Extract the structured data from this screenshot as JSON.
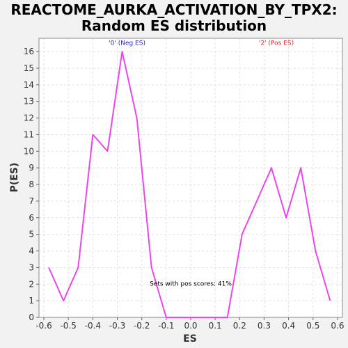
{
  "chart_data": {
    "type": "line",
    "title_lines": [
      "REACTOME_AURKA_ACTIVATION_BY_TPX2:",
      "Random ES distribution"
    ],
    "xlabel": "ES",
    "ylabel": "P(ES)",
    "xlim": [
      -0.62,
      0.62
    ],
    "ylim": [
      0,
      16.8
    ],
    "x_ticks": [
      -0.6,
      -0.5,
      -0.4,
      -0.3,
      -0.2,
      -0.1,
      0.0,
      0.1,
      0.2,
      0.3,
      0.4,
      0.5,
      0.6
    ],
    "x_tick_labels": [
      "-0.6",
      "-0.5",
      "-0.4",
      "-0.3",
      "-0.2",
      "-0.1",
      "0.0",
      "0.1",
      "0.2",
      "0.3",
      "0.4",
      "0.5",
      "0.6"
    ],
    "y_ticks": [
      0,
      1,
      2,
      3,
      4,
      5,
      6,
      7,
      8,
      9,
      10,
      11,
      12,
      13,
      14,
      15,
      16
    ],
    "grid": true,
    "series": [
      {
        "color": "#ee44ee",
        "x": [
          -0.58,
          -0.52,
          -0.46,
          -0.4,
          -0.34,
          -0.28,
          -0.22,
          -0.16,
          -0.1,
          -0.04,
          0.03,
          0.09,
          0.15,
          0.21,
          0.27,
          0.33,
          0.39,
          0.45,
          0.51,
          0.57
        ],
        "y": [
          3,
          1,
          3,
          11,
          10,
          16,
          12,
          3,
          0,
          0,
          0,
          0,
          0,
          5,
          7,
          9,
          6,
          9,
          4,
          1
        ]
      }
    ],
    "annotations": [
      {
        "text": "'0' (Neg ES)",
        "x": -0.26,
        "y": 16.4,
        "color": "#2222cc"
      },
      {
        "text": "'2' (Pos ES)",
        "x": 0.35,
        "y": 16.4,
        "color": "#dd2222"
      },
      {
        "text": "Sets with pos scores: 41%",
        "x": 0.0,
        "y": 1.9,
        "color": "#000000"
      }
    ]
  }
}
